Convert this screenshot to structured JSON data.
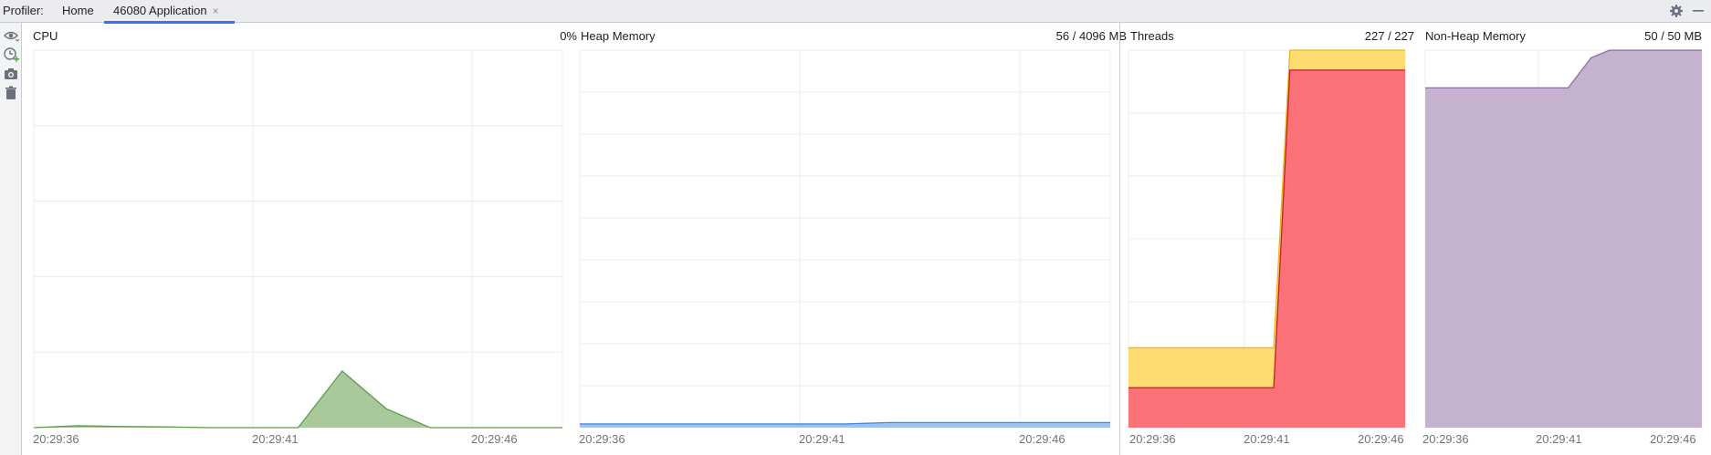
{
  "header": {
    "profiler_label": "Profiler:",
    "tabs": [
      {
        "label": "Home",
        "active": false
      },
      {
        "label": "46080 Application",
        "active": true,
        "close_glyph": "×"
      }
    ],
    "right_icons": [
      "gear-icon",
      "minimize-icon"
    ]
  },
  "toolbar": {
    "icons": [
      "eye-icon",
      "clock-add-icon",
      "camera-icon",
      "trash-icon"
    ]
  },
  "colors": {
    "cpu_fill": "#a9c99a",
    "cpu_line": "#5f9b4b",
    "heap_fill": "#9cc3ee",
    "heap_line": "#4a8ae0",
    "threads_outer_fill": "#fedc72",
    "threads_outer_line": "#e6b820",
    "threads_inner_fill": "#fb7379",
    "threads_inner_line": "#c61d20",
    "nonheap_fill": "#c5b2ce",
    "nonheap_line": "#8b6d9c",
    "grid": "#ececec"
  },
  "chart_data": [
    {
      "id": "cpu",
      "type": "area",
      "title": "CPU",
      "value_label": "0%",
      "x_ticks": [
        "20:29:36",
        "20:29:41",
        "20:29:46"
      ],
      "x": [
        0,
        1,
        2,
        3,
        4,
        5,
        6,
        7,
        8,
        9,
        10,
        11,
        12
      ],
      "series": [
        {
          "values": [
            0,
            0.5,
            0.3,
            0.2,
            0,
            0,
            0,
            15,
            5,
            0,
            0,
            0,
            0
          ]
        }
      ],
      "ylim": [
        0,
        100
      ]
    },
    {
      "id": "heap",
      "type": "area",
      "title": "Heap Memory",
      "value_label": "56 / 4096 MB",
      "x_ticks": [
        "20:29:36",
        "20:29:41",
        "20:29:46"
      ],
      "x": [
        0,
        6,
        7,
        12
      ],
      "series": [
        {
          "values": [
            40,
            40,
            56,
            56
          ]
        }
      ],
      "ylim": [
        0,
        4096
      ]
    },
    {
      "id": "threads",
      "type": "area",
      "title": "Threads",
      "value_label": "227 / 227",
      "x_ticks": [
        "20:29:36",
        "20:29:41",
        "20:29:46"
      ],
      "x": [
        0,
        6.3,
        7,
        12
      ],
      "series": [
        {
          "values": [
            48,
            48,
            227,
            227
          ]
        },
        {
          "values": [
            24,
            24,
            215,
            215
          ]
        }
      ],
      "ylim": [
        0,
        227
      ]
    },
    {
      "id": "nonheap",
      "type": "area",
      "title": "Non-Heap Memory",
      "value_label": "50 / 50 MB",
      "x_ticks": [
        "20:29:36",
        "20:29:41",
        "20:29:46"
      ],
      "x": [
        0,
        6.2,
        7.2,
        8,
        12
      ],
      "series": [
        {
          "values": [
            45,
            45,
            49,
            50,
            50
          ]
        }
      ],
      "ylim": [
        0,
        50
      ]
    }
  ]
}
